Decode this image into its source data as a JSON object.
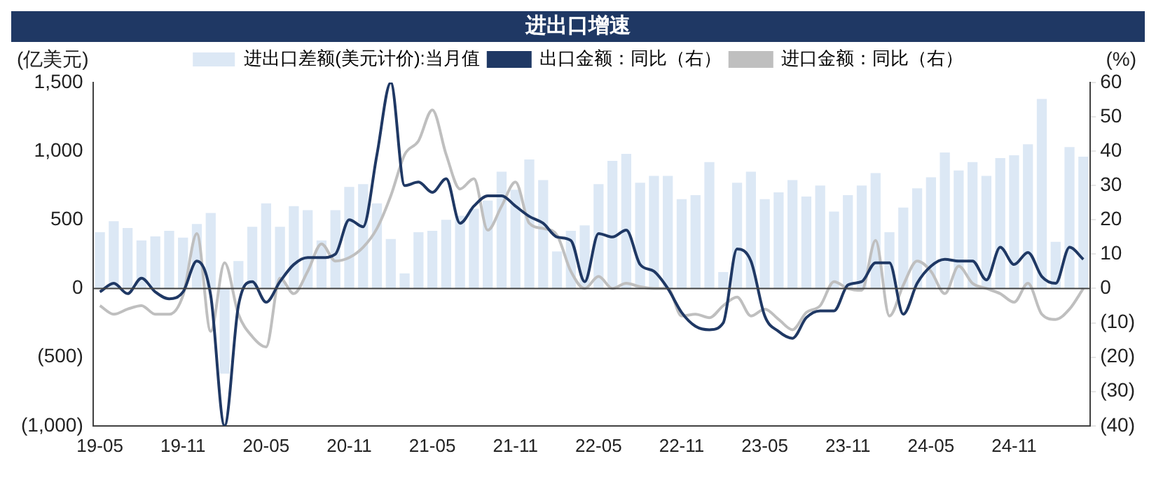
{
  "chart_data": {
    "type": "bar",
    "title": "进出口增速",
    "ylabel": "(亿美元)",
    "y2label": "(%)",
    "categories": [
      "19-05",
      null,
      null,
      null,
      null,
      null,
      "19-11",
      null,
      null,
      null,
      null,
      null,
      "20-05",
      null,
      null,
      null,
      null,
      null,
      "20-11",
      null,
      null,
      null,
      null,
      null,
      "21-05",
      null,
      null,
      null,
      null,
      null,
      "21-11",
      null,
      null,
      null,
      null,
      null,
      "22-05",
      null,
      null,
      null,
      null,
      null,
      "22-11",
      null,
      null,
      null,
      null,
      null,
      "23-05",
      null,
      null,
      null,
      null,
      null,
      "23-11",
      null,
      null,
      null,
      null,
      null,
      "24-05",
      null,
      null,
      null,
      null,
      null,
      "24-11",
      null,
      null,
      null,
      null,
      null
    ],
    "series": [
      {
        "name": "进出口差额(美元计价):当月值",
        "color": "#dce8f5",
        "values": [
          410,
          490,
          440,
          350,
          380,
          420,
          370,
          470,
          550,
          -620,
          200,
          450,
          620,
          450,
          600,
          570,
          350,
          570,
          740,
          760,
          620,
          360,
          110,
          410,
          420,
          500,
          530,
          580,
          640,
          850,
          720,
          940,
          790,
          270,
          420,
          460,
          760,
          930,
          980,
          770,
          820,
          820,
          650,
          680,
          920,
          120,
          770,
          850,
          650,
          700,
          790,
          670,
          750,
          560,
          680,
          750,
          840,
          410,
          590,
          730,
          810,
          990,
          860,
          920,
          820,
          950,
          970,
          1050,
          1380,
          340,
          1030,
          960
        ]
      },
      {
        "name": "出口金额：同比（右）",
        "type": "line",
        "axis": "y2",
        "color": "#1f3864",
        "values": [
          -1,
          1.5,
          -1.5,
          3,
          -1,
          -3,
          -1,
          8,
          -2,
          -40,
          -5,
          2,
          -4,
          2,
          7,
          9,
          9,
          10,
          20,
          18,
          39,
          60,
          30,
          31,
          28,
          32,
          19,
          24,
          27,
          27,
          24,
          21,
          19,
          15,
          14,
          2,
          16,
          15,
          17,
          7,
          5,
          0,
          -7,
          -11,
          -12,
          -10,
          11.5,
          8,
          -8,
          -12.5,
          -14.5,
          -8.5,
          -6.5,
          -6.5,
          1,
          2,
          7.5,
          7.5,
          -7.5,
          1.5,
          6.5,
          8.5,
          8,
          8,
          2.5,
          12,
          7,
          10.5,
          3.5,
          1.5,
          12,
          8.5
        ]
      },
      {
        "name": "进口金额：同比（右）",
        "type": "line",
        "axis": "y2",
        "color": "#bfbfbf",
        "values": [
          -5,
          -7.5,
          -6,
          -5,
          -7.5,
          -7.5,
          -2,
          16,
          -12.5,
          7.5,
          -7.5,
          -14,
          -17,
          3,
          -1.5,
          5,
          13,
          8,
          9,
          12,
          17.5,
          27,
          39,
          43,
          52,
          39,
          29,
          32,
          17,
          24,
          31,
          19,
          17.5,
          15.5,
          5,
          0,
          3.5,
          0,
          1.5,
          0.5,
          0,
          0,
          -8,
          -7.5,
          -8.5,
          -5,
          -2.5,
          -8,
          -6,
          -9,
          -12,
          -7,
          -5,
          2,
          0,
          -0.5,
          14,
          -8,
          1,
          8,
          5,
          -1.5,
          6.5,
          1.5,
          0,
          -1.5,
          -4,
          1.5,
          -7.5,
          -9,
          -6,
          0
        ]
      }
    ],
    "ylim": [
      -1000,
      1500
    ],
    "yticks": [
      {
        "value": -1000,
        "label": "(1,000)"
      },
      {
        "value": -500,
        "label": "(500)"
      },
      0,
      {
        "value": 500,
        "label": "500"
      },
      {
        "value": 1000,
        "label": "1,000"
      },
      {
        "value": 1500,
        "label": "1,500"
      }
    ],
    "y2lim": [
      -40,
      60
    ],
    "y2ticks": [
      {
        "value": -40,
        "label": "(40)"
      },
      {
        "value": -30,
        "label": "(30)"
      },
      {
        "value": -20,
        "label": "(20)"
      },
      {
        "value": -10,
        "label": "(10)"
      },
      0,
      10,
      20,
      30,
      40,
      50,
      60
    ],
    "ref_lines": [
      {
        "axis": "y",
        "value": 0
      }
    ],
    "legend": "top",
    "grid": false,
    "marker": "none",
    "line_style": "solid"
  }
}
